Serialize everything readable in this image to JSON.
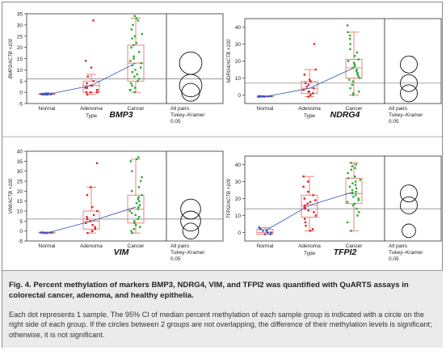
{
  "chart_data": [
    {
      "type": "scatter",
      "title": "BMP3",
      "ylabel": "BMP3/ACTB ×100",
      "xlabel": "Type",
      "ylim": [
        -5,
        35
      ],
      "yticks": [
        -5,
        0,
        5,
        10,
        15,
        20,
        25,
        30,
        35
      ],
      "categories": [
        "Normal",
        "Adenoma",
        "Cancer"
      ],
      "grand_line": 6,
      "box": [
        {
          "q1": -1,
          "med": -0.8,
          "q3": -0.5,
          "lo": -1,
          "hi": -0.4
        },
        {
          "q1": 0,
          "med": 3,
          "q3": 5,
          "lo": -1,
          "hi": 8
        },
        {
          "q1": 5,
          "med": 13,
          "q3": 21,
          "lo": 0,
          "hi": 33
        }
      ],
      "points": [
        [
          -1,
          -1,
          -0.9,
          -0.8,
          -0.8,
          -0.7,
          -0.7,
          -0.6,
          -0.5,
          -0.5,
          -1,
          -0.9
        ],
        [
          32,
          14,
          11,
          7,
          5,
          4,
          3,
          3,
          2,
          2,
          1,
          1,
          0,
          0,
          0,
          -1
        ],
        [
          34,
          33,
          32,
          30,
          28,
          26,
          25,
          24,
          22,
          21,
          20,
          18,
          16,
          15,
          14,
          13,
          12,
          11,
          10,
          9,
          8,
          7,
          6,
          5,
          4,
          3,
          2,
          1,
          1,
          0
        ]
      ],
      "means": [
        -1,
        3,
        13
      ],
      "comparison_circles": [
        {
          "center": 13,
          "radius": 5
        },
        {
          "center": 3,
          "radius": 5
        },
        {
          "center": 0,
          "radius": 4
        }
      ],
      "comparison_label": [
        "All pairs",
        "Tukey–Kramer",
        "0.05"
      ]
    },
    {
      "type": "scatter",
      "title": "NDRG4",
      "ylabel": "NDRG4/ACTB ×100",
      "xlabel": "Type",
      "ylim": [
        -5,
        45
      ],
      "yticks": [
        0,
        10,
        20,
        30,
        40
      ],
      "categories": [
        "Normal",
        "Adenoma",
        "Cancer"
      ],
      "grand_line": 7,
      "box": [
        {
          "q1": -1,
          "med": -0.8,
          "q3": -0.6,
          "lo": -1,
          "hi": -0.5
        },
        {
          "q1": 1,
          "med": 4,
          "q3": 8,
          "lo": -1,
          "hi": 15
        },
        {
          "q1": 10,
          "med": 16,
          "q3": 21,
          "lo": 0,
          "hi": 37
        }
      ],
      "points": [
        [
          -1,
          -1,
          -0.9,
          -0.8,
          -0.8,
          -0.7,
          -0.6,
          -0.6,
          -1,
          -0.9
        ],
        [
          30,
          15,
          12,
          9,
          8,
          7,
          6,
          5,
          4,
          3,
          2,
          2,
          1,
          0,
          -1
        ],
        [
          41,
          37,
          35,
          33,
          30,
          27,
          25,
          23,
          21,
          20,
          19,
          18,
          17,
          16,
          15,
          14,
          13,
          12,
          11,
          10,
          9,
          8,
          6,
          4,
          2,
          1,
          0
        ]
      ],
      "means": [
        -1,
        4,
        16
      ],
      "comparison_circles": [
        {
          "center": 18,
          "radius": 5
        },
        {
          "center": 7,
          "radius": 5
        },
        {
          "center": 1,
          "radius": 5
        }
      ],
      "comparison_label": [
        "All pairs",
        "Tukey–Kramer",
        "0.05"
      ]
    },
    {
      "type": "scatter",
      "title": "VIM",
      "ylabel": "VIM/ACTB ×100",
      "xlabel": "",
      "ylim": [
        -5,
        40
      ],
      "yticks": [
        -5,
        0,
        5,
        10,
        15,
        20,
        25,
        30,
        35,
        40
      ],
      "categories": [
        "Normal",
        "Adenoma",
        "Cancer"
      ],
      "grand_line": 6,
      "box": [
        {
          "q1": -1,
          "med": -0.8,
          "q3": -0.6,
          "lo": -1,
          "hi": -0.5
        },
        {
          "q1": 1,
          "med": 5,
          "q3": 10,
          "lo": -1,
          "hi": 22
        },
        {
          "q1": 4,
          "med": 11,
          "q3": 18,
          "lo": -1,
          "hi": 36
        }
      ],
      "points": [
        [
          -1,
          -1,
          -0.9,
          -0.8,
          -0.8,
          -0.7,
          -0.6,
          -1,
          -0.9
        ],
        [
          34,
          22,
          18,
          12,
          10,
          8,
          7,
          6,
          5,
          4,
          3,
          2,
          1,
          0,
          -1
        ],
        [
          37,
          36,
          35,
          30,
          27,
          25,
          22,
          20,
          18,
          17,
          16,
          15,
          14,
          13,
          12,
          11,
          10,
          9,
          8,
          7,
          6,
          5,
          4,
          3,
          2,
          1,
          0,
          -1
        ]
      ],
      "means": [
        -1,
        5,
        12
      ],
      "comparison_circles": [
        {
          "center": 11,
          "radius": 5
        },
        {
          "center": 5,
          "radius": 5
        },
        {
          "center": 0,
          "radius": 4
        }
      ],
      "comparison_label": [
        "All pairs",
        "Tukey–Kramer",
        "0.05"
      ]
    },
    {
      "type": "scatter",
      "title": "TFPI2",
      "ylabel": "TFPI2/ACTB ×100",
      "xlabel": "Type",
      "ylim": [
        -5,
        45
      ],
      "yticks": [
        0,
        10,
        20,
        30,
        40
      ],
      "categories": [
        "Normal",
        "Adenoma",
        "Cancer"
      ],
      "grand_line": 14,
      "box": [
        {
          "q1": -1,
          "med": 0,
          "q3": 2,
          "lo": -1,
          "hi": 3
        },
        {
          "q1": 9,
          "med": 16,
          "q3": 22,
          "lo": 1,
          "hi": 33
        },
        {
          "q1": 17,
          "med": 23,
          "q3": 32,
          "lo": 1,
          "hi": 41
        }
      ],
      "points": [
        [
          3,
          2,
          2,
          1,
          1,
          0,
          0,
          -1,
          -1,
          0
        ],
        [
          33,
          30,
          27,
          24,
          22,
          20,
          19,
          18,
          17,
          16,
          15,
          14,
          13,
          12,
          10,
          8,
          6,
          4,
          2,
          1
        ],
        [
          41,
          40,
          39,
          38,
          37,
          35,
          33,
          32,
          31,
          30,
          29,
          28,
          27,
          26,
          25,
          24,
          23,
          22,
          21,
          20,
          19,
          18,
          17,
          16,
          14,
          12,
          10,
          6,
          1
        ]
      ],
      "means": [
        1,
        16,
        24
      ],
      "comparison_circles": [
        {
          "center": 23,
          "radius": 5
        },
        {
          "center": 16,
          "radius": 5
        },
        {
          "center": 1,
          "radius": 4
        }
      ],
      "comparison_label": [
        "All pairs",
        "Tukey–Kramer",
        "0.05"
      ]
    }
  ],
  "colors": {
    "normal": "#3a56c8",
    "adenoma": "#e01f2a",
    "cancer": "#2aa832",
    "box": "#e66a55",
    "mean_line": "#2d4fb8",
    "grand_line": "#7a7a7a",
    "frame": "#333333"
  },
  "caption": {
    "title": "Fig. 4. Percent methylation of markers BMP3, NDRG4, VIM, and TFPI2 was quantified with QuARTS assays in colorectal cancer, adenoma, and healthy epithelia.",
    "body": "Each dot represents 1 sample. The 95% CI of median percent methylation of each sample group is indicated with a circle on the right side of each group. If the circles between 2 groups are not overlapping, the difference of their methylation levels is significant; otherwise, it is not significant."
  }
}
